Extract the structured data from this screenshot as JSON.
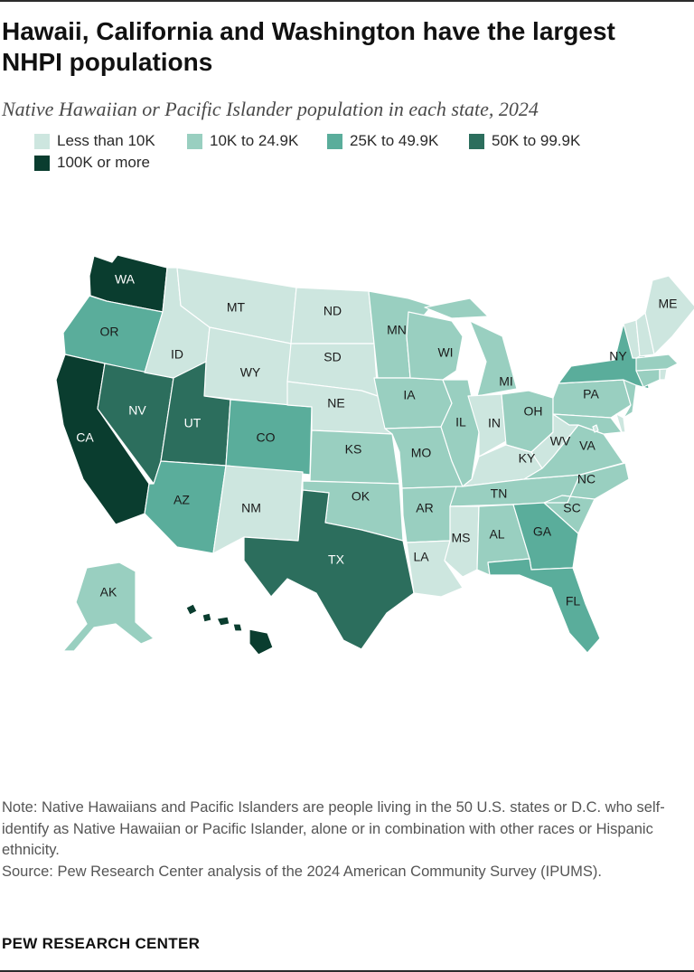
{
  "header": {
    "title": "Hawaii, California and Washington have the largest NHPI populations",
    "subtitle": "Native Hawaiian or Pacific Islander population in each state, 2024"
  },
  "legend": [
    {
      "label": "Less than 10K",
      "color": "#cde6df"
    },
    {
      "label": "10K to 24.9K",
      "color": "#99cfc0"
    },
    {
      "label": "25K to 49.9K",
      "color": "#5aad9b"
    },
    {
      "label": "50K to 99.9K",
      "color": "#2c6e5d"
    },
    {
      "label": "100K or more",
      "color": "#0a3d2f"
    }
  ],
  "map": {
    "bins": [
      "Less than 10K",
      "10K to 24.9K",
      "25K to 49.9K",
      "50K to 99.9K",
      "100K or more"
    ],
    "states": [
      {
        "abbr": "WA",
        "bin": 4
      },
      {
        "abbr": "OR",
        "bin": 2
      },
      {
        "abbr": "CA",
        "bin": 4
      },
      {
        "abbr": "NV",
        "bin": 3
      },
      {
        "abbr": "ID",
        "bin": 0
      },
      {
        "abbr": "MT",
        "bin": 0
      },
      {
        "abbr": "WY",
        "bin": 0
      },
      {
        "abbr": "UT",
        "bin": 3
      },
      {
        "abbr": "CO",
        "bin": 2
      },
      {
        "abbr": "AZ",
        "bin": 2
      },
      {
        "abbr": "NM",
        "bin": 0
      },
      {
        "abbr": "ND",
        "bin": 0
      },
      {
        "abbr": "SD",
        "bin": 0
      },
      {
        "abbr": "NE",
        "bin": 0
      },
      {
        "abbr": "KS",
        "bin": 1
      },
      {
        "abbr": "OK",
        "bin": 1
      },
      {
        "abbr": "TX",
        "bin": 3
      },
      {
        "abbr": "MN",
        "bin": 1
      },
      {
        "abbr": "IA",
        "bin": 1
      },
      {
        "abbr": "MO",
        "bin": 1
      },
      {
        "abbr": "AR",
        "bin": 1
      },
      {
        "abbr": "LA",
        "bin": 0
      },
      {
        "abbr": "WI",
        "bin": 1
      },
      {
        "abbr": "IL",
        "bin": 1
      },
      {
        "abbr": "MI",
        "bin": 1
      },
      {
        "abbr": "IN",
        "bin": 0
      },
      {
        "abbr": "OH",
        "bin": 1
      },
      {
        "abbr": "KY",
        "bin": 0
      },
      {
        "abbr": "TN",
        "bin": 1
      },
      {
        "abbr": "MS",
        "bin": 0
      },
      {
        "abbr": "AL",
        "bin": 1
      },
      {
        "abbr": "GA",
        "bin": 2
      },
      {
        "abbr": "FL",
        "bin": 2
      },
      {
        "abbr": "SC",
        "bin": 1
      },
      {
        "abbr": "NC",
        "bin": 1
      },
      {
        "abbr": "VA",
        "bin": 1
      },
      {
        "abbr": "WV",
        "bin": 0
      },
      {
        "abbr": "PA",
        "bin": 1
      },
      {
        "abbr": "NY",
        "bin": 2
      },
      {
        "abbr": "ME",
        "bin": 0
      },
      {
        "abbr": "AK",
        "bin": 1
      },
      {
        "abbr": "HI",
        "bin": 4
      }
    ],
    "unlabeled_states": [
      {
        "id": "VT",
        "bin": 0
      },
      {
        "id": "NH",
        "bin": 0
      },
      {
        "id": "MA",
        "bin": 1
      },
      {
        "id": "RI",
        "bin": 0
      },
      {
        "id": "CT",
        "bin": 1
      },
      {
        "id": "NJ",
        "bin": 1
      },
      {
        "id": "DE",
        "bin": 0
      },
      {
        "id": "MD",
        "bin": 1
      },
      {
        "id": "DC",
        "bin": 0
      }
    ]
  },
  "footer": {
    "note": "Note: Native Hawaiians and Pacific Islanders are people living in the 50 U.S. states or D.C. who self-identify as Native Hawaiian or Pacific Islander, alone or in combination with other races or Hispanic ethnicity.",
    "source": "Source: Pew Research Center analysis of the 2024 American Community Survey (IPUMS).",
    "brand": "PEW RESEARCH CENTER"
  }
}
